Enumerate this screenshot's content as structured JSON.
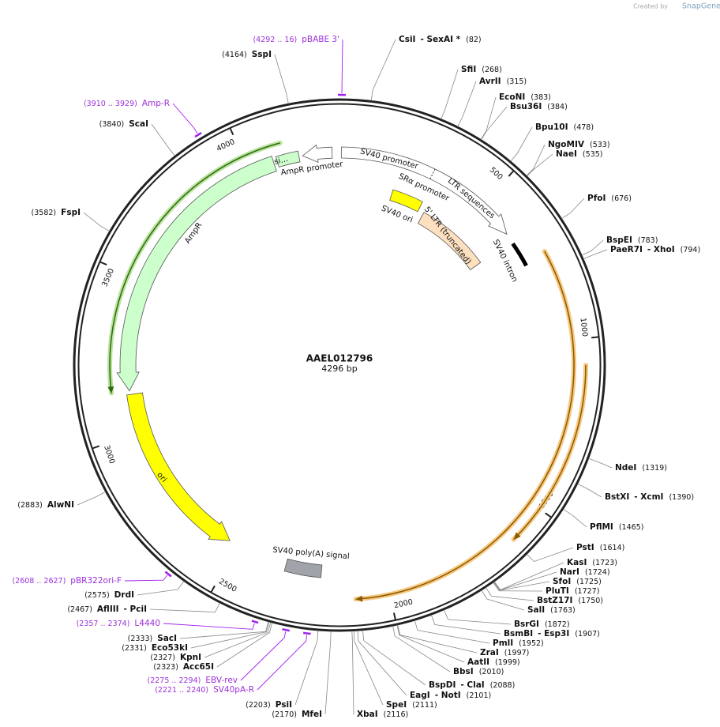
{
  "header": {
    "credit": "Created by",
    "brand": "SnapGene"
  },
  "map": {
    "title": "AAEL012796",
    "length": {
      "value": 4296,
      "label": "4296 bp"
    },
    "ruler_ticks": [
      500,
      1000,
      1500,
      2000,
      2500,
      3000,
      3500,
      4000
    ],
    "sites": [
      {
        "names": [
          "CsiI",
          "- SexAI *"
        ],
        "position": {
          "value": 82,
          "label": "(82)"
        }
      },
      {
        "names": [
          "SfiI"
        ],
        "position": {
          "value": 268,
          "label": "(268)"
        }
      },
      {
        "names": [
          "AvrII"
        ],
        "position": {
          "value": 315,
          "label": "(315)"
        }
      },
      {
        "names": [
          "EcoNI"
        ],
        "position": {
          "value": 383,
          "label": "(383)"
        }
      },
      {
        "names": [
          "Bsu36I"
        ],
        "position": {
          "value": 384,
          "label": "(384)"
        }
      },
      {
        "names": [
          "Bpu10I"
        ],
        "position": {
          "value": 478,
          "label": "(478)"
        }
      },
      {
        "names": [
          "NgoMIV"
        ],
        "position": {
          "value": 533,
          "label": "(533)"
        }
      },
      {
        "names": [
          "NaeI"
        ],
        "position": {
          "value": 535,
          "label": "(535)"
        }
      },
      {
        "names": [
          "PfoI"
        ],
        "position": {
          "value": 676,
          "label": "(676)"
        }
      },
      {
        "names": [
          "BspEI"
        ],
        "position": {
          "value": 783,
          "label": "(783)"
        }
      },
      {
        "names": [
          "PaeR7I",
          "- XhoI"
        ],
        "position": {
          "value": 794,
          "label": "(794)"
        }
      },
      {
        "names": [
          "NdeI"
        ],
        "position": {
          "value": 1319,
          "label": "(1319)"
        }
      },
      {
        "names": [
          "BstXI",
          "- XcmI"
        ],
        "position": {
          "value": 1390,
          "label": "(1390)"
        }
      },
      {
        "names": [
          "PflMI"
        ],
        "position": {
          "value": 1465,
          "label": "(1465)"
        }
      },
      {
        "names": [
          "PstI"
        ],
        "position": {
          "value": 1614,
          "label": "(1614)"
        }
      },
      {
        "names": [
          "KasI"
        ],
        "position": {
          "value": 1723,
          "label": "(1723)"
        }
      },
      {
        "names": [
          "NarI"
        ],
        "position": {
          "value": 1724,
          "label": "(1724)"
        }
      },
      {
        "names": [
          "SfoI"
        ],
        "position": {
          "value": 1725,
          "label": "(1725)"
        }
      },
      {
        "names": [
          "PluTI"
        ],
        "position": {
          "value": 1727,
          "label": "(1727)"
        }
      },
      {
        "names": [
          "BstZ17I"
        ],
        "position": {
          "value": 1750,
          "label": "(1750)"
        }
      },
      {
        "names": [
          "SalI"
        ],
        "position": {
          "value": 1763,
          "label": "(1763)"
        }
      },
      {
        "names": [
          "BsrGI"
        ],
        "position": {
          "value": 1872,
          "label": "(1872)"
        }
      },
      {
        "names": [
          "BsmBI",
          "- Esp3I"
        ],
        "position": {
          "value": 1907,
          "label": "(1907)"
        }
      },
      {
        "names": [
          "PmlI"
        ],
        "position": {
          "value": 1952,
          "label": "(1952)"
        }
      },
      {
        "names": [
          "ZraI"
        ],
        "position": {
          "value": 1997,
          "label": "(1997)"
        }
      },
      {
        "names": [
          "AatII"
        ],
        "position": {
          "value": 1999,
          "label": "(1999)"
        }
      },
      {
        "names": [
          "BbsI"
        ],
        "position": {
          "value": 2010,
          "label": "(2010)"
        }
      },
      {
        "names": [
          "BspDI",
          "- ClaI"
        ],
        "position": {
          "value": 2088,
          "label": "(2088)"
        }
      },
      {
        "names": [
          "EagI",
          "- NotI"
        ],
        "position": {
          "value": 2101,
          "label": "(2101)"
        }
      },
      {
        "names": [
          "SpeI"
        ],
        "position": {
          "value": 2111,
          "label": "(2111)"
        }
      },
      {
        "names": [
          "XbaI"
        ],
        "position": {
          "value": 2116,
          "label": "(2116)"
        }
      },
      {
        "names": [
          "MfeI"
        ],
        "position": {
          "value": 2170,
          "label": "(2170)"
        }
      },
      {
        "names": [
          "PsiI"
        ],
        "position": {
          "value": 2203,
          "label": "(2203)"
        }
      },
      {
        "names": [
          "Acc65I"
        ],
        "position": {
          "value": 2323,
          "label": "(2323)"
        }
      },
      {
        "names": [
          "KpnI"
        ],
        "position": {
          "value": 2327,
          "label": "(2327)"
        }
      },
      {
        "names": [
          "Eco53kI"
        ],
        "position": {
          "value": 2331,
          "label": "(2331)"
        }
      },
      {
        "names": [
          "SacI"
        ],
        "position": {
          "value": 2333,
          "label": "(2333)"
        }
      },
      {
        "names": [
          "AflIII",
          "- PciI"
        ],
        "position": {
          "value": 2467,
          "label": "(2467)"
        }
      },
      {
        "names": [
          "DrdI"
        ],
        "position": {
          "value": 2575,
          "label": "(2575)"
        }
      },
      {
        "names": [
          "AlwNI"
        ],
        "position": {
          "value": 2883,
          "label": "(2883)"
        }
      },
      {
        "names": [
          "FspI"
        ],
        "position": {
          "value": 3582,
          "label": "(3582)"
        }
      },
      {
        "names": [
          "ScaI"
        ],
        "position": {
          "value": 3840,
          "label": "(3840)"
        }
      },
      {
        "names": [
          "SspI"
        ],
        "position": {
          "value": 4164,
          "label": "(4164)"
        }
      }
    ],
    "primers": [
      {
        "name": "pBABE 3'",
        "range": {
          "start": 4292,
          "end": 16,
          "label": "(4292 .. 16)"
        }
      },
      {
        "name": "Amp-R",
        "range": {
          "start": 3910,
          "end": 3929,
          "label": "(3910 .. 3929)"
        }
      },
      {
        "name": "pBR322ori-F",
        "range": {
          "start": 2608,
          "end": 2627,
          "label": "(2608 .. 2627)"
        }
      },
      {
        "name": "L4440",
        "range": {
          "start": 2357,
          "end": 2374,
          "label": "(2357 .. 2374)"
        }
      },
      {
        "name": "EBV-rev",
        "range": {
          "start": 2275,
          "end": 2294,
          "label": "(2275 .. 2294)"
        }
      },
      {
        "name": "SV40pA-R",
        "range": {
          "start": 2221,
          "end": 2240,
          "label": "(2221 .. 2240)"
        }
      }
    ],
    "features": [
      {
        "label": "si..."
      },
      {
        "label": "AmpR promoter"
      },
      {
        "label": "AmpR"
      },
      {
        "label": "SV40 promoter"
      },
      {
        "label": "LTR sequences"
      },
      {
        "label": "SRα promoter"
      },
      {
        "label": "SV40 ori"
      },
      {
        "label": "5' LTR (truncated)"
      },
      {
        "label": "SV40 intron"
      },
      {
        "label": "ori"
      },
      {
        "label": "SV40 poly(A) signal"
      }
    ]
  }
}
